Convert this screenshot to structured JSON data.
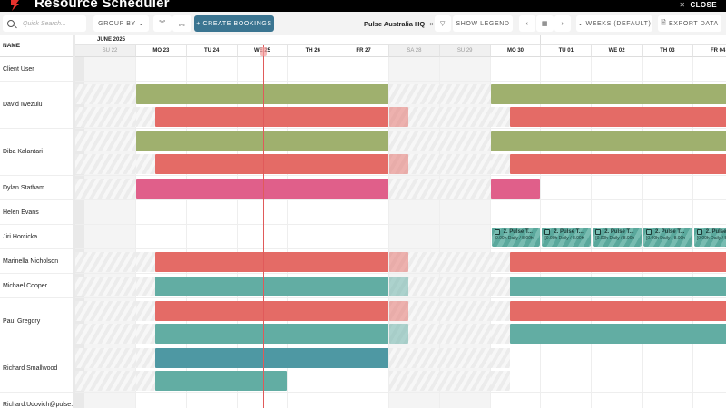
{
  "window": {
    "title": "Resource Scheduler",
    "close_label": "CLOSE",
    "logo_color": "#e8322d"
  },
  "toolbar": {
    "search_placeholder": "Quick Search...",
    "group_by_label": "GROUP BY",
    "expand_all_label": "︾",
    "collapse_all_label": "︽",
    "create_bookings_label": "+ CREATE BOOKINGS",
    "location_filter": "Pulse Australia HQ",
    "filter_remove": "×",
    "filter_icon": "▽",
    "show_legend_label": "SHOW LEGEND",
    "prev_label": "‹",
    "today_label": "▦",
    "next_label": "›",
    "view_mode_label": "⌄ WEEKS (DEFAULT)",
    "export_label": "EXPORT DATA"
  },
  "grid": {
    "name_header": "NAME",
    "month_label": "JUNE 2025",
    "days": [
      {
        "label": "SU 22",
        "weekend": true
      },
      {
        "label": "MO 23",
        "weekend": false
      },
      {
        "label": "TU 24",
        "weekend": false
      },
      {
        "label": "WE 25",
        "weekend": false
      },
      {
        "label": "TH 26",
        "weekend": false
      },
      {
        "label": "FR 27",
        "weekend": false
      },
      {
        "label": "SA 28",
        "weekend": true
      },
      {
        "label": "SU 29",
        "weekend": true
      },
      {
        "label": "MO 30",
        "weekend": false
      },
      {
        "label": "TU 01",
        "weekend": false
      },
      {
        "label": "WE 02",
        "weekend": false
      },
      {
        "label": "TH 03",
        "weekend": false
      },
      {
        "label": "FR 04",
        "weekend": false
      }
    ],
    "today_index": 3,
    "colors": {
      "green": "#9fb06e",
      "red": "#e46b66",
      "pink": "#e05f8a",
      "teal": "#62ada3",
      "blue": "#4e98a3"
    },
    "resources": [
      {
        "name": "Client User",
        "lanes": 1,
        "hatched": false,
        "bars": []
      },
      {
        "name": "David Iwezulu",
        "lanes": 2,
        "hatched": true,
        "bars": [
          {
            "lane": 0,
            "color": "green",
            "start": 1,
            "end": 6
          },
          {
            "lane": 0,
            "color": "green",
            "start": 8,
            "end": 13
          },
          {
            "lane": 1,
            "color": "red",
            "start": 1.38,
            "end": 6
          },
          {
            "lane": 1,
            "color": "red",
            "start": 6,
            "end": 6.38,
            "faded": true
          },
          {
            "lane": 1,
            "color": "red",
            "start": 8.38,
            "end": 13
          }
        ]
      },
      {
        "name": "Diba Kalantari",
        "lanes": 2,
        "hatched": true,
        "bars": [
          {
            "lane": 0,
            "color": "green",
            "start": 1,
            "end": 6
          },
          {
            "lane": 0,
            "color": "green",
            "start": 8,
            "end": 13
          },
          {
            "lane": 1,
            "color": "red",
            "start": 1.38,
            "end": 6
          },
          {
            "lane": 1,
            "color": "red",
            "start": 6,
            "end": 6.38,
            "faded": true
          },
          {
            "lane": 1,
            "color": "red",
            "start": 8.38,
            "end": 13
          }
        ]
      },
      {
        "name": "Dylan Statham",
        "lanes": 1,
        "hatched": true,
        "bars": [
          {
            "lane": 0,
            "color": "pink",
            "start": 1,
            "end": 6
          },
          {
            "lane": 0,
            "color": "pink",
            "start": 8,
            "end": 9
          }
        ]
      },
      {
        "name": "Helen Evans",
        "lanes": 1,
        "hatched": false,
        "bars": []
      },
      {
        "name": "Jiri Horcicka",
        "lanes": 1,
        "hatched": false,
        "bars": [],
        "tiles": {
          "start": 8,
          "end": 13,
          "title": "2. Pulse T...",
          "detail": "[0.00h Daily / 8.00h"
        }
      },
      {
        "name": "Marinella Nicholson",
        "lanes": 1,
        "hatched": true,
        "bars": [
          {
            "lane": 0,
            "color": "red",
            "start": 1.38,
            "end": 6
          },
          {
            "lane": 0,
            "color": "red",
            "start": 6,
            "end": 6.38,
            "faded": true
          },
          {
            "lane": 0,
            "color": "red",
            "start": 8.38,
            "end": 13
          }
        ]
      },
      {
        "name": "Michael Cooper",
        "lanes": 1,
        "hatched": true,
        "bars": [
          {
            "lane": 0,
            "color": "teal",
            "start": 1.38,
            "end": 6
          },
          {
            "lane": 0,
            "color": "teal",
            "start": 6,
            "end": 6.38,
            "faded": true
          },
          {
            "lane": 0,
            "color": "teal",
            "start": 8.38,
            "end": 13
          }
        ]
      },
      {
        "name": "Paul Gregory",
        "lanes": 2,
        "hatched": true,
        "bars": [
          {
            "lane": 0,
            "color": "red",
            "start": 1.38,
            "end": 6
          },
          {
            "lane": 0,
            "color": "red",
            "start": 6,
            "end": 6.38,
            "faded": true
          },
          {
            "lane": 0,
            "color": "red",
            "start": 8.38,
            "end": 13
          },
          {
            "lane": 1,
            "color": "teal",
            "start": 1.38,
            "end": 6
          },
          {
            "lane": 1,
            "color": "teal",
            "start": 6,
            "end": 6.38,
            "faded": true
          },
          {
            "lane": 1,
            "color": "teal",
            "start": 8.38,
            "end": 13
          }
        ]
      },
      {
        "name": "Richard Smallwood",
        "lanes": 2,
        "hatched": true,
        "bars": [
          {
            "lane": 0,
            "color": "blue",
            "start": 1.38,
            "end": 6
          },
          {
            "lane": 1,
            "color": "teal",
            "start": 1.38,
            "end": 4
          }
        ]
      },
      {
        "name": "Richard.Udovich@pulse.",
        "lanes": 1,
        "hatched": false,
        "bars": []
      }
    ]
  }
}
